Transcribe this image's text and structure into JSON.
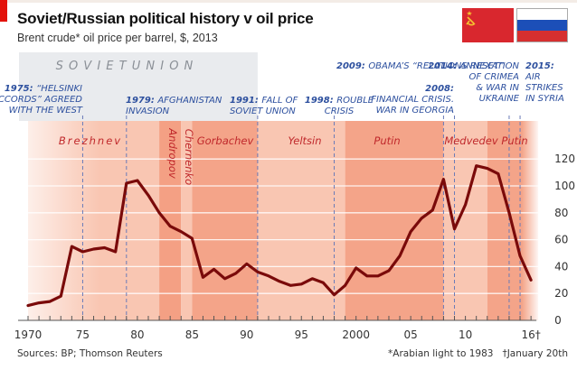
{
  "header": {
    "title": "Soviet/Russian political history v oil price",
    "subtitle": "Brent crude* oil price per barrel, $, 2013"
  },
  "flags": [
    {
      "name": "soviet-flag",
      "colors": [
        "#d9272e",
        "#f5c431"
      ]
    },
    {
      "name": "russia-flag",
      "colors": [
        "#ffffff",
        "#1c4fb8",
        "#d62f2f"
      ]
    }
  ],
  "footer": {
    "sources": "Sources: BP; Thomson Reuters",
    "footnote": "*Arabian light to 1983   †January 20th"
  },
  "chart_data": {
    "type": "line",
    "title": "Soviet/Russian political history v oil price",
    "subtitle": "Brent crude* oil price per barrel, $, 2013",
    "xlabel": "",
    "ylabel": "",
    "xlim": [
      1970,
      2016
    ],
    "ylim": [
      0,
      120
    ],
    "yticks": [
      0,
      20,
      40,
      60,
      80,
      100,
      120
    ],
    "xtick_labels": [
      {
        "x": 1970,
        "label": "1970"
      },
      {
        "x": 1975,
        "label": "75"
      },
      {
        "x": 1980,
        "label": "80"
      },
      {
        "x": 1985,
        "label": "85"
      },
      {
        "x": 1990,
        "label": "90"
      },
      {
        "x": 1995,
        "label": "95"
      },
      {
        "x": 2000,
        "label": "2000"
      },
      {
        "x": 2005,
        "label": "05"
      },
      {
        "x": 2010,
        "label": "10"
      },
      {
        "x": 2016,
        "label": "16†"
      }
    ],
    "grid": true,
    "series": [
      {
        "name": "Brent crude oil price, $ per barrel (2013 prices)",
        "color": "#7a0a0a",
        "x": [
          1970,
          1971,
          1972,
          1973,
          1974,
          1975,
          1976,
          1977,
          1978,
          1979,
          1980,
          1981,
          1982,
          1983,
          1984,
          1985,
          1986,
          1987,
          1988,
          1989,
          1990,
          1991,
          1992,
          1993,
          1994,
          1995,
          1996,
          1997,
          1998,
          1999,
          2000,
          2001,
          2002,
          2003,
          2004,
          2005,
          2006,
          2007,
          2008,
          2009,
          2010,
          2011,
          2012,
          2013,
          2014,
          2015,
          2016
        ],
        "values": [
          11,
          13,
          14,
          18,
          55,
          51,
          53,
          54,
          51,
          102,
          104,
          93,
          80,
          70,
          66,
          61,
          32,
          38,
          31,
          35,
          42,
          36,
          33,
          29,
          26,
          27,
          31,
          28,
          19,
          26,
          39,
          33,
          33,
          37,
          48,
          66,
          76,
          82,
          105,
          68,
          86,
          115,
          113,
          109,
          80,
          48,
          30
        ]
      }
    ],
    "leaders": [
      {
        "name": "Brezhnev",
        "start": 1970,
        "end": 1982
      },
      {
        "name": "Andropov",
        "start": 1982,
        "end": 1984
      },
      {
        "name": "Chernenko",
        "start": 1984,
        "end": 1985
      },
      {
        "name": "Gorbachev",
        "start": 1985,
        "end": 1991
      },
      {
        "name": "Yeltsin",
        "start": 1991,
        "end": 1999
      },
      {
        "name": "Putin",
        "start": 1999,
        "end": 2008
      },
      {
        "name": "Medvedev",
        "start": 2008,
        "end": 2012
      },
      {
        "name": "Putin",
        "start": 2012,
        "end": 2016
      }
    ],
    "era_label": {
      "text": "S O V I E T   U N I O N",
      "start": 1970,
      "end": 1991
    },
    "events": [
      {
        "year": 1975,
        "label": "1975:",
        "text": [
          "“HELSINKI",
          "ACCORDS” AGREED",
          "WITH THE WEST"
        ]
      },
      {
        "year": 1979,
        "label": "1979:",
        "text": [
          "AFGHANISTAN",
          "INVASION"
        ]
      },
      {
        "year": 1991,
        "label": "1991:",
        "text": [
          "FALL OF",
          "SOVIET UNION"
        ]
      },
      {
        "year": 1998,
        "label": "1998:",
        "text": [
          "ROUBLE",
          "CRISIS"
        ]
      },
      {
        "year": 2008,
        "label": "2008:",
        "text": [
          "FINANCIAL CRISIS.",
          "WAR IN GEORGIA"
        ]
      },
      {
        "year": 2009,
        "label": "2009:",
        "text": [
          "OBAMA’S “RELATIONS RESET”"
        ]
      },
      {
        "year": 2014,
        "label": "2014:",
        "text": [
          "ANNEXATION",
          "OF CRIMEA",
          "& WAR IN",
          "UKRAINE"
        ]
      },
      {
        "year": 2015,
        "label": "2015:",
        "text": [
          "AIR",
          "STRIKES",
          "IN SYRIA"
        ]
      }
    ],
    "footnotes": [
      "*Arabian light to 1983",
      "†January 20th"
    ],
    "source": "Sources: BP; Thomson Reuters"
  }
}
